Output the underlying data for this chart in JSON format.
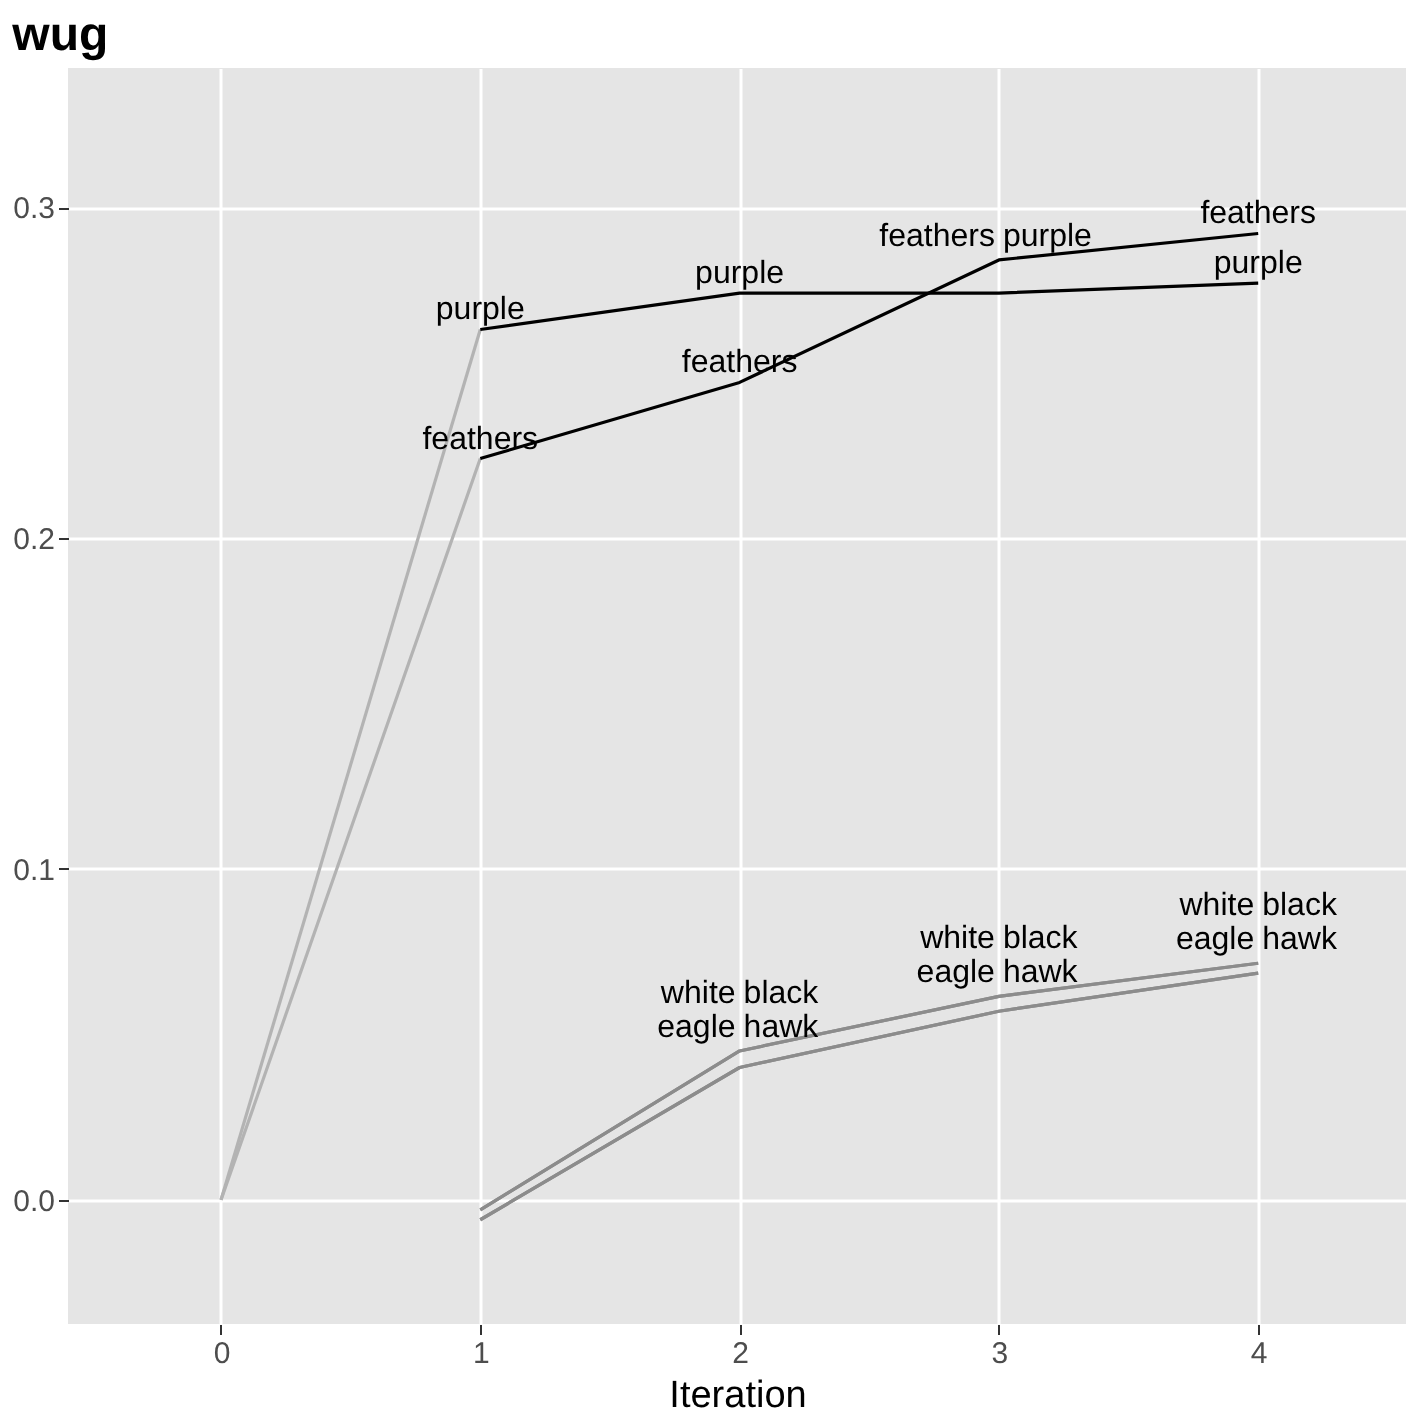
{
  "chart_data": {
    "type": "line",
    "title": "wug",
    "xlabel": "Iteration",
    "xlim": [
      -0.59,
      4.57
    ],
    "ylim": [
      -0.0375,
      0.342
    ],
    "xticks": [
      0,
      1,
      2,
      3,
      4
    ],
    "yticks": [
      {
        "value": 0,
        "label": "0.0"
      },
      {
        "value": 0.1,
        "label": "0.1"
      },
      {
        "value": 0.2,
        "label": "0.2"
      },
      {
        "value": 0.3,
        "label": "0.3"
      }
    ],
    "grid": true,
    "line_style": "solid",
    "series": [
      {
        "color": "#b3b3b3",
        "x": [
          0,
          1
        ],
        "values": [
          0.0,
          0.263
        ]
      },
      {
        "color": "#b3b3b3",
        "x": [
          0,
          1
        ],
        "values": [
          0.0,
          0.224
        ]
      },
      {
        "color": "#000000",
        "x": [
          1,
          2,
          3,
          4
        ],
        "values": [
          0.263,
          0.274,
          0.274,
          0.277
        ]
      },
      {
        "color": "#000000",
        "x": [
          1,
          2,
          3,
          4
        ],
        "values": [
          0.224,
          0.247,
          0.284,
          0.292
        ]
      },
      {
        "color": "#8c8c8c",
        "x": [
          1,
          2,
          3,
          4
        ],
        "values": [
          -0.003,
          0.045,
          0.0615,
          0.0715
        ]
      },
      {
        "color": "#8c8c8c",
        "x": [
          1,
          2,
          3,
          4
        ],
        "values": [
          -0.003,
          0.045,
          0.0615,
          0.0715
        ]
      },
      {
        "color": "#8c8c8c",
        "x": [
          1,
          2,
          3,
          4
        ],
        "values": [
          -0.006,
          0.04,
          0.057,
          0.0685
        ]
      },
      {
        "color": "#8c8c8c",
        "x": [
          1,
          2,
          3,
          4
        ],
        "values": [
          -0.006,
          0.04,
          0.057,
          0.0685
        ]
      }
    ],
    "annotations": [
      {
        "text": "purple",
        "x": 1,
        "y": 0.263
      },
      {
        "text": "purple",
        "x": 2,
        "y": 0.274
      },
      {
        "text": "purple",
        "x": 3,
        "y": 0.274
      },
      {
        "text": "purple",
        "x": 4,
        "y": 0.277
      },
      {
        "text": "feathers",
        "x": 1,
        "y": 0.224
      },
      {
        "text": "feathers",
        "x": 2,
        "y": 0.247
      },
      {
        "text": "feathers",
        "x": 3,
        "y": 0.284
      },
      {
        "text": "feathers",
        "x": 4,
        "y": 0.292
      },
      {
        "text": "white",
        "x": 2,
        "y": 0.045
      },
      {
        "text": "white",
        "x": 3,
        "y": 0.0615
      },
      {
        "text": "white",
        "x": 4,
        "y": 0.0715
      },
      {
        "text": "black",
        "x": 2,
        "y": 0.045
      },
      {
        "text": "black",
        "x": 3,
        "y": 0.0615
      },
      {
        "text": "black",
        "x": 4,
        "y": 0.0715
      },
      {
        "text": "eagle",
        "x": 2,
        "y": 0.04
      },
      {
        "text": "eagle",
        "x": 3,
        "y": 0.057
      },
      {
        "text": "eagle",
        "x": 4,
        "y": 0.0685
      },
      {
        "text": "hawk",
        "x": 2,
        "y": 0.04
      },
      {
        "text": "hawk",
        "x": 3,
        "y": 0.057
      },
      {
        "text": "hawk",
        "x": 4,
        "y": 0.0685
      }
    ]
  }
}
